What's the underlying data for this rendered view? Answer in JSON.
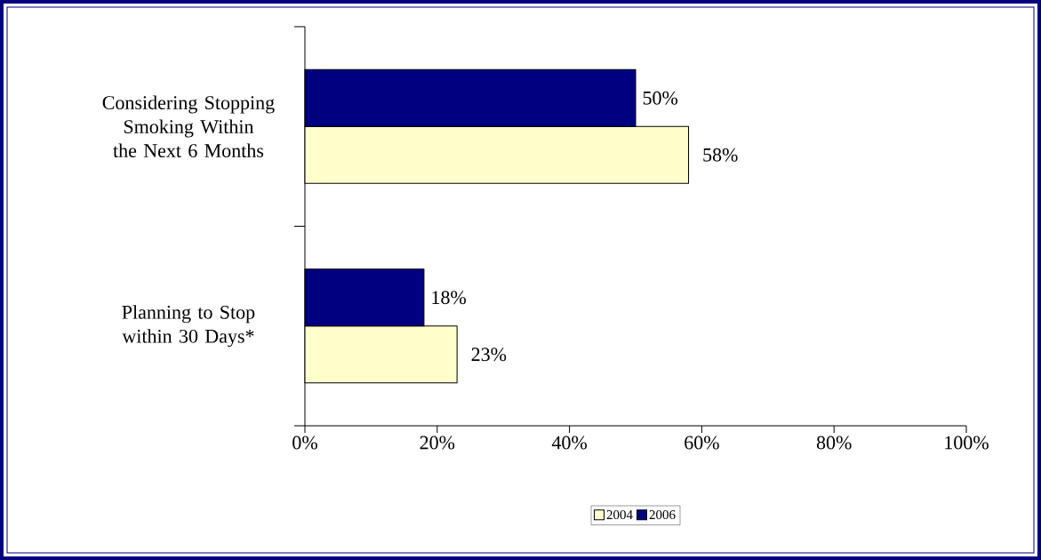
{
  "chart_data": {
    "type": "bar",
    "orientation": "horizontal",
    "categories": [
      "Considering Stopping Smoking Within the Next 6 Months",
      "Planning to Stop within 30 Days*"
    ],
    "series": [
      {
        "name": "2004",
        "color": "#ffffcc",
        "values": [
          58,
          23
        ],
        "value_labels": [
          "58%",
          "23%"
        ]
      },
      {
        "name": "2006",
        "color": "#000080",
        "values": [
          50,
          18
        ],
        "value_labels": [
          "50%",
          "18%"
        ]
      }
    ],
    "xlim": [
      0,
      100
    ],
    "xticks": [
      {
        "value": 0,
        "label": "0%"
      },
      {
        "value": 20,
        "label": "20%"
      },
      {
        "value": 40,
        "label": "40%"
      },
      {
        "value": 60,
        "label": "60%"
      },
      {
        "value": 80,
        "label": "80%"
      },
      {
        "value": 100,
        "label": "100%"
      }
    ],
    "grid": false,
    "legend": "bottom"
  }
}
